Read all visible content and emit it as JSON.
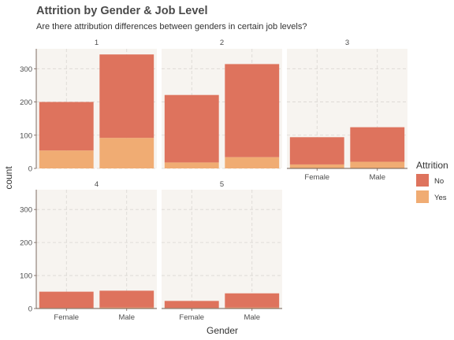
{
  "chart_data": {
    "type": "bar",
    "stacked": true,
    "faceted": true,
    "title": "Attrition by Gender & Job Level",
    "subtitle": "Are there attribution differences between genders in certain job levels?",
    "xlabel": "Gender",
    "ylabel": "count",
    "categories": [
      "Female",
      "Male"
    ],
    "ylim": [
      0,
      360
    ],
    "yticks": [
      0,
      100,
      200,
      300
    ],
    "legend": {
      "title": "Attrition",
      "position": "right",
      "entries": [
        {
          "label": "No",
          "color": "#de735d"
        },
        {
          "label": "Yes",
          "color": "#f0ac73"
        }
      ]
    },
    "grid": true,
    "panels": [
      {
        "label": "1",
        "series": [
          {
            "name": "Yes",
            "values": [
              54,
              92
            ]
          },
          {
            "name": "No",
            "values": [
              146,
              251
            ]
          }
        ]
      },
      {
        "label": "2",
        "series": [
          {
            "name": "Yes",
            "values": [
              18,
              34
            ]
          },
          {
            "name": "No",
            "values": [
              203,
              280
            ]
          }
        ]
      },
      {
        "label": "3",
        "series": [
          {
            "name": "Yes",
            "values": [
              12,
              20
            ]
          },
          {
            "name": "No",
            "values": [
              82,
              104
            ]
          }
        ]
      },
      {
        "label": "4",
        "series": [
          {
            "name": "Yes",
            "values": [
              2,
              3
            ]
          },
          {
            "name": "No",
            "values": [
              49,
              51
            ]
          }
        ]
      },
      {
        "label": "5",
        "series": [
          {
            "name": "Yes",
            "values": [
              2,
              3
            ]
          },
          {
            "name": "No",
            "values": [
              21,
              43
            ]
          }
        ]
      }
    ]
  }
}
